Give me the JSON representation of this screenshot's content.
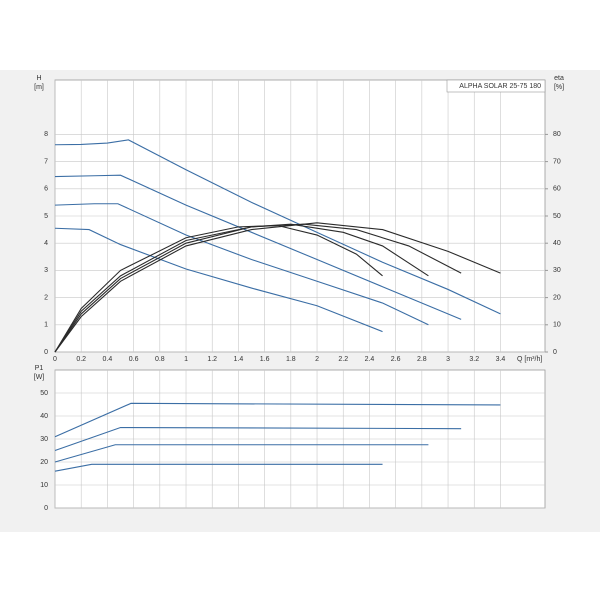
{
  "chart_data": [
    {
      "type": "line",
      "title": "ALPHA SOLAR 25-75  180",
      "ylabel": "H",
      "yunit": "[m]",
      "y2label": "eta",
      "y2unit": "[%]",
      "xlabel": "Q [m³/h]",
      "xlim": [
        0,
        3.74
      ],
      "xticks": [
        0,
        0.2,
        0.4,
        0.6,
        0.8,
        1,
        1.2,
        1.4,
        1.6,
        1.8,
        2,
        2.2,
        2.4,
        2.6,
        2.8,
        3,
        3.2,
        3.4
      ],
      "ylim": [
        0,
        10
      ],
      "yticks": [
        0,
        1,
        2,
        3,
        4,
        5,
        6,
        7,
        8
      ],
      "y2lim": [
        0,
        100
      ],
      "y2ticks": [
        0,
        10,
        20,
        30,
        40,
        50,
        60,
        70,
        80
      ],
      "grid": true,
      "series": [
        {
          "color": "#3b6ea5",
          "x": [
            0,
            0.2,
            0.4,
            0.56,
            1.0,
            1.5,
            2.0,
            2.5,
            3.0,
            3.4
          ],
          "values": [
            7.62,
            7.63,
            7.68,
            7.8,
            6.7,
            5.5,
            4.4,
            3.3,
            2.3,
            1.4
          ]
        },
        {
          "color": "#3b6ea5",
          "x": [
            0,
            0.3,
            0.5,
            1.0,
            1.5,
            2.0,
            2.5,
            3.1
          ],
          "values": [
            6.45,
            6.48,
            6.5,
            5.4,
            4.4,
            3.4,
            2.4,
            1.2
          ]
        },
        {
          "color": "#3b6ea5",
          "x": [
            0,
            0.3,
            0.48,
            1.0,
            1.5,
            2.0,
            2.5,
            2.85
          ],
          "values": [
            5.4,
            5.45,
            5.45,
            4.3,
            3.4,
            2.6,
            1.8,
            1.0
          ]
        },
        {
          "color": "#3b6ea5",
          "x": [
            0,
            0.26,
            0.5,
            1.0,
            1.5,
            2.0,
            2.5
          ],
          "values": [
            4.55,
            4.5,
            3.95,
            3.05,
            2.35,
            1.7,
            0.75
          ]
        },
        {
          "color": "#2b2b2b",
          "axis": "y2",
          "x": [
            0,
            0.2,
            0.5,
            1.0,
            1.5,
            2.0,
            2.5,
            3.0,
            3.4
          ],
          "values": [
            0,
            13,
            26,
            39,
            45,
            47.5,
            45,
            37,
            29
          ]
        },
        {
          "color": "#2b2b2b",
          "axis": "y2",
          "x": [
            0,
            0.2,
            0.5,
            1.0,
            1.5,
            1.9,
            2.3,
            2.7,
            3.1
          ],
          "values": [
            0,
            14,
            27,
            40,
            46,
            47,
            45,
            39,
            29
          ]
        },
        {
          "color": "#2b2b2b",
          "axis": "y2",
          "x": [
            0,
            0.2,
            0.5,
            1.0,
            1.5,
            1.8,
            2.2,
            2.5,
            2.85
          ],
          "values": [
            0,
            15,
            28,
            41,
            46,
            47,
            44,
            39,
            28
          ]
        },
        {
          "color": "#2b2b2b",
          "axis": "y2",
          "x": [
            0,
            0.2,
            0.5,
            1.0,
            1.4,
            1.7,
            2.0,
            2.3,
            2.5
          ],
          "values": [
            0,
            16,
            30,
            42,
            46,
            46.5,
            43,
            36,
            28
          ]
        }
      ]
    },
    {
      "type": "line",
      "ylabel": "P1",
      "yunit": "[W]",
      "xlim": [
        0,
        3.74
      ],
      "xticks": [
        0,
        0.2,
        0.4,
        0.6,
        0.8,
        1,
        1.2,
        1.4,
        1.6,
        1.8,
        2,
        2.2,
        2.4,
        2.6,
        2.8,
        3,
        3.2,
        3.4
      ],
      "ylim": [
        0,
        60
      ],
      "yticks": [
        0,
        10,
        20,
        30,
        40,
        50
      ],
      "grid": true,
      "series": [
        {
          "color": "#3b6ea5",
          "x": [
            0,
            0.58,
            3.4
          ],
          "values": [
            31,
            45.5,
            44.8
          ]
        },
        {
          "color": "#3b6ea5",
          "x": [
            0,
            0.5,
            3.1
          ],
          "values": [
            25,
            35,
            34.5
          ]
        },
        {
          "color": "#3b6ea5",
          "x": [
            0,
            0.46,
            2.85
          ],
          "values": [
            20,
            27.5,
            27.5
          ]
        },
        {
          "color": "#3b6ea5",
          "x": [
            0,
            0.28,
            2.5
          ],
          "values": [
            16,
            19,
            19
          ]
        }
      ]
    }
  ]
}
